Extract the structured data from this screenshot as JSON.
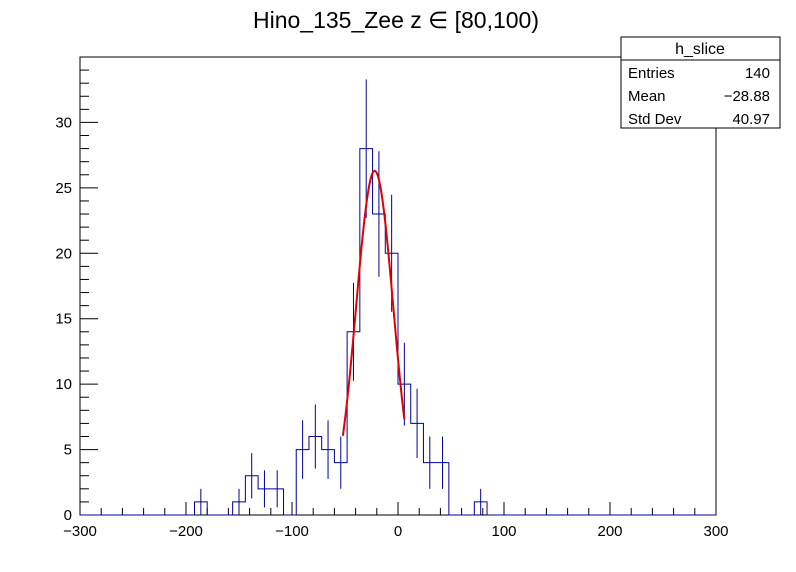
{
  "chart_data": {
    "type": "histogram",
    "title": "Hino_135_Zee z  ∈ [80,100)",
    "xlim": [
      -300,
      300
    ],
    "ylim": [
      0,
      35
    ],
    "x_ticks": [
      -300,
      -200,
      -100,
      0,
      100,
      200,
      300
    ],
    "x_tick_labels": [
      "−300",
      "−200",
      "−100",
      "0",
      "100",
      "200",
      "300"
    ],
    "y_ticks": [
      0,
      5,
      10,
      15,
      20,
      25,
      30
    ],
    "y_tick_labels": [
      "0",
      "5",
      "10",
      "15",
      "20",
      "25",
      "30"
    ],
    "bin_width": 12,
    "bin_start": -300,
    "bins": [
      {
        "x": -192,
        "value": 1
      },
      {
        "x": -156,
        "value": 1
      },
      {
        "x": -144,
        "value": 3
      },
      {
        "x": -132,
        "value": 2
      },
      {
        "x": -120,
        "value": 2
      },
      {
        "x": -96,
        "value": 5
      },
      {
        "x": -84,
        "value": 6
      },
      {
        "x": -72,
        "value": 5
      },
      {
        "x": -60,
        "value": 4
      },
      {
        "x": -48,
        "value": 14
      },
      {
        "x": -36,
        "value": 28
      },
      {
        "x": -24,
        "value": 23
      },
      {
        "x": -12,
        "value": 20
      },
      {
        "x": 0,
        "value": 10
      },
      {
        "x": 12,
        "value": 7
      },
      {
        "x": 24,
        "value": 4
      },
      {
        "x": 36,
        "value": 4
      },
      {
        "x": 72,
        "value": 1
      }
    ],
    "fit": {
      "type": "gaussian",
      "amplitude": 26.3,
      "mean": -22,
      "sigma": 17.5,
      "range": [
        -52,
        6
      ],
      "color": "#e00000"
    },
    "hist_color": "#000099",
    "stats_box": {
      "title": "h_slice",
      "rows": [
        {
          "label": "Entries",
          "value": "140"
        },
        {
          "label": "Mean",
          "value": "−28.88"
        },
        {
          "label": "Std Dev",
          "value": "40.97"
        }
      ]
    }
  }
}
